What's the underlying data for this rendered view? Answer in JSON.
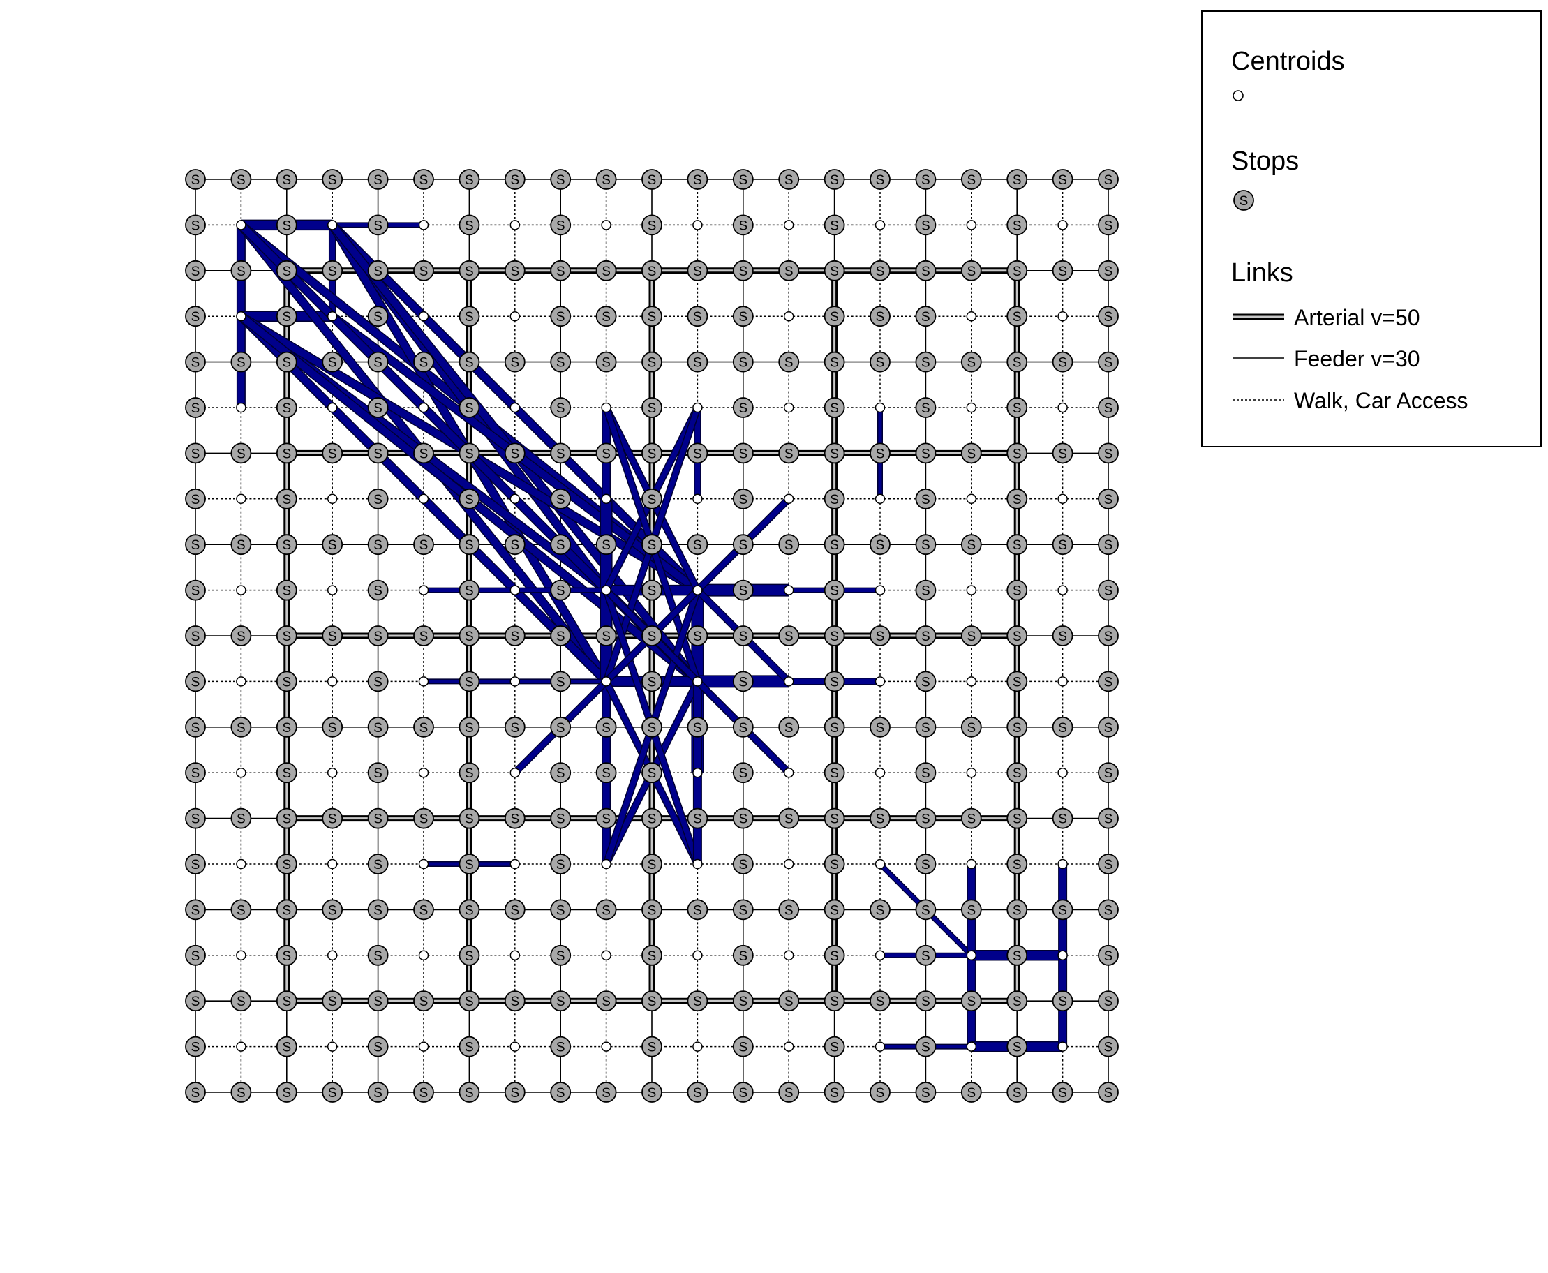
{
  "legend": {
    "centroids_label": "Centroids",
    "stops_label": "Stops",
    "links_label": "Links",
    "arterial_label": "Arterial v=50",
    "feeder_label": "Feeder v=30",
    "walk_label": "Walk, Car Access",
    "stop_symbol": "S"
  },
  "network": {
    "columns": 21,
    "rows": 21,
    "arterial_columns": [
      2,
      6,
      10,
      14,
      18
    ],
    "arterial_rows": [
      2,
      6,
      10,
      14,
      18
    ],
    "centroid_rows": [
      1,
      3,
      5,
      7,
      9,
      11,
      13,
      15,
      17,
      19
    ],
    "centroid_columns": [
      1,
      3,
      5,
      7,
      9,
      11,
      13,
      15,
      17,
      19
    ],
    "centroid_nodes": [
      [
        1,
        5
      ]
    ],
    "centroid_exceptions": [
      [
        9,
        3
      ],
      [
        11,
        3
      ],
      [
        15,
        3
      ],
      [
        9,
        13
      ]
    ]
  },
  "colors": {
    "flow_fill": "#00008b",
    "flow_outline": "#000033",
    "arterial_outer": "#000000",
    "arterial_inner": "#c8c8c8",
    "stop_fill": "#a8a8a8",
    "centroid_fill": "#ffffff"
  },
  "flows": [
    {
      "from": [
        1,
        1
      ],
      "to": [
        3,
        1
      ],
      "w": 2.5
    },
    {
      "from": [
        3,
        1
      ],
      "to": [
        5,
        1
      ],
      "w": 1
    },
    {
      "from": [
        1,
        1
      ],
      "to": [
        1,
        5
      ],
      "w": 2
    },
    {
      "from": [
        3,
        1
      ],
      "to": [
        3,
        3
      ],
      "w": 1.5
    },
    {
      "from": [
        1,
        3
      ],
      "to": [
        3,
        3
      ],
      "w": 2.5
    },
    {
      "from": [
        1,
        1
      ],
      "to": [
        9,
        9
      ],
      "w": 2
    },
    {
      "from": [
        1,
        1
      ],
      "to": [
        11,
        9
      ],
      "w": 2
    },
    {
      "from": [
        1,
        1
      ],
      "to": [
        9,
        11
      ],
      "w": 2
    },
    {
      "from": [
        1,
        1
      ],
      "to": [
        11,
        11
      ],
      "w": 2
    },
    {
      "from": [
        3,
        1
      ],
      "to": [
        9,
        9
      ],
      "w": 2
    },
    {
      "from": [
        3,
        1
      ],
      "to": [
        11,
        9
      ],
      "w": 2
    },
    {
      "from": [
        3,
        1
      ],
      "to": [
        9,
        11
      ],
      "w": 2
    },
    {
      "from": [
        3,
        1
      ],
      "to": [
        11,
        11
      ],
      "w": 2
    },
    {
      "from": [
        1,
        3
      ],
      "to": [
        9,
        9
      ],
      "w": 2
    },
    {
      "from": [
        1,
        3
      ],
      "to": [
        11,
        9
      ],
      "w": 2
    },
    {
      "from": [
        1,
        3
      ],
      "to": [
        9,
        11
      ],
      "w": 2
    },
    {
      "from": [
        1,
        3
      ],
      "to": [
        11,
        11
      ],
      "w": 2
    },
    {
      "from": [
        3,
        3
      ],
      "to": [
        9,
        9
      ],
      "w": 2
    },
    {
      "from": [
        3,
        3
      ],
      "to": [
        11,
        9
      ],
      "w": 2
    },
    {
      "from": [
        3,
        3
      ],
      "to": [
        11,
        11
      ],
      "w": 2
    },
    {
      "from": [
        9,
        5
      ],
      "to": [
        9,
        15
      ],
      "w": 2
    },
    {
      "from": [
        11,
        5
      ],
      "to": [
        11,
        7
      ],
      "w": 1.5
    },
    {
      "from": [
        11,
        9
      ],
      "to": [
        11,
        13
      ],
      "w": 3
    },
    {
      "from": [
        9,
        7
      ],
      "to": [
        9,
        11
      ],
      "w": 3
    },
    {
      "from": [
        9,
        9
      ],
      "to": [
        11,
        9
      ],
      "w": 2.5
    },
    {
      "from": [
        9,
        11
      ],
      "to": [
        11,
        11
      ],
      "w": 2.5
    },
    {
      "from": [
        11,
        9
      ],
      "to": [
        13,
        9
      ],
      "w": 3
    },
    {
      "from": [
        11,
        11
      ],
      "to": [
        13,
        11
      ],
      "w": 3
    },
    {
      "from": [
        13,
        9
      ],
      "to": [
        15,
        9
      ],
      "w": 1
    },
    {
      "from": [
        13,
        11
      ],
      "to": [
        15,
        11
      ],
      "w": 1.5
    },
    {
      "from": [
        5,
        9
      ],
      "to": [
        9,
        9
      ],
      "w": 1
    },
    {
      "from": [
        5,
        11
      ],
      "to": [
        9,
        11
      ],
      "w": 1
    },
    {
      "from": [
        9,
        5
      ],
      "to": [
        11,
        9
      ],
      "w": 1.5
    },
    {
      "from": [
        11,
        5
      ],
      "to": [
        9,
        9
      ],
      "w": 1.5
    },
    {
      "from": [
        9,
        5
      ],
      "to": [
        11,
        11
      ],
      "w": 1.5
    },
    {
      "from": [
        11,
        5
      ],
      "to": [
        9,
        11
      ],
      "w": 1.5
    },
    {
      "from": [
        9,
        15
      ],
      "to": [
        11,
        11
      ],
      "w": 1.5
    },
    {
      "from": [
        11,
        15
      ],
      "to": [
        9,
        11
      ],
      "w": 1.5
    },
    {
      "from": [
        9,
        15
      ],
      "to": [
        11,
        9
      ],
      "w": 1.5
    },
    {
      "from": [
        11,
        15
      ],
      "to": [
        9,
        9
      ],
      "w": 1.5
    },
    {
      "from": [
        11,
        15
      ],
      "to": [
        11,
        11
      ],
      "w": 2
    },
    {
      "from": [
        13,
        7
      ],
      "to": [
        9,
        11
      ],
      "w": 1.5
    },
    {
      "from": [
        9,
        11
      ],
      "to": [
        7,
        13
      ],
      "w": 1.5
    },
    {
      "from": [
        9,
        9
      ],
      "to": [
        13,
        13
      ],
      "w": 1.5
    },
    {
      "from": [
        11,
        9
      ],
      "to": [
        13,
        11
      ],
      "w": 1.5
    },
    {
      "from": [
        11,
        11
      ],
      "to": [
        13,
        13
      ],
      "w": 1.5
    },
    {
      "from": [
        9,
        11
      ],
      "to": [
        13,
        7
      ],
      "w": 1.5
    },
    {
      "from": [
        5,
        15
      ],
      "to": [
        7,
        15
      ],
      "w": 1
    },
    {
      "from": [
        15,
        5
      ],
      "to": [
        15,
        7
      ],
      "w": 1
    },
    {
      "from": [
        15,
        15
      ],
      "to": [
        17,
        17
      ],
      "w": 1
    },
    {
      "from": [
        15,
        17
      ],
      "to": [
        17,
        17
      ],
      "w": 1
    },
    {
      "from": [
        15,
        19
      ],
      "to": [
        17,
        19
      ],
      "w": 1
    },
    {
      "from": [
        17,
        15
      ],
      "to": [
        17,
        19
      ],
      "w": 2
    },
    {
      "from": [
        17,
        17
      ],
      "to": [
        19,
        17
      ],
      "w": 2.5
    },
    {
      "from": [
        17,
        19
      ],
      "to": [
        19,
        19
      ],
      "w": 2.5
    },
    {
      "from": [
        19,
        15
      ],
      "to": [
        19,
        19
      ],
      "w": 2
    }
  ]
}
